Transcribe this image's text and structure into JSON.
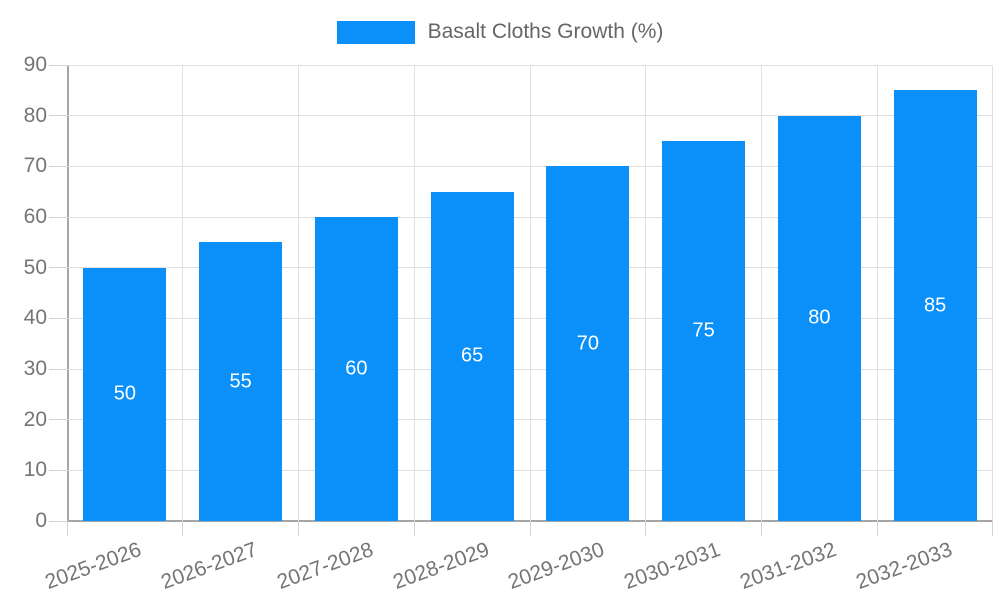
{
  "legend": {
    "label": "Basalt Cloths Growth (%)"
  },
  "chart_data": {
    "type": "bar",
    "title": "",
    "series_name": "Basalt Cloths Growth (%)",
    "categories": [
      "2025-2026",
      "2026-2027",
      "2027-2028",
      "2028-2029",
      "2029-2030",
      "2030-2031",
      "2031-2032",
      "2032-2033"
    ],
    "values": [
      50,
      55,
      60,
      65,
      70,
      75,
      80,
      85
    ],
    "value_labels": [
      "50",
      "55",
      "60",
      "65",
      "70",
      "75",
      "80",
      "85"
    ],
    "xlabel": "",
    "ylabel": "",
    "ylim": [
      0,
      90
    ],
    "yticks": [
      0,
      10,
      20,
      30,
      40,
      50,
      60,
      70,
      80,
      90
    ],
    "grid": true,
    "legend_position": "top",
    "bar_color": "#0a90f8",
    "value_label_color": "#ffffff",
    "axis_text_color": "#757575",
    "gridline_color": "#e0e0e0",
    "axis_line_color": "#a6a6a6"
  }
}
